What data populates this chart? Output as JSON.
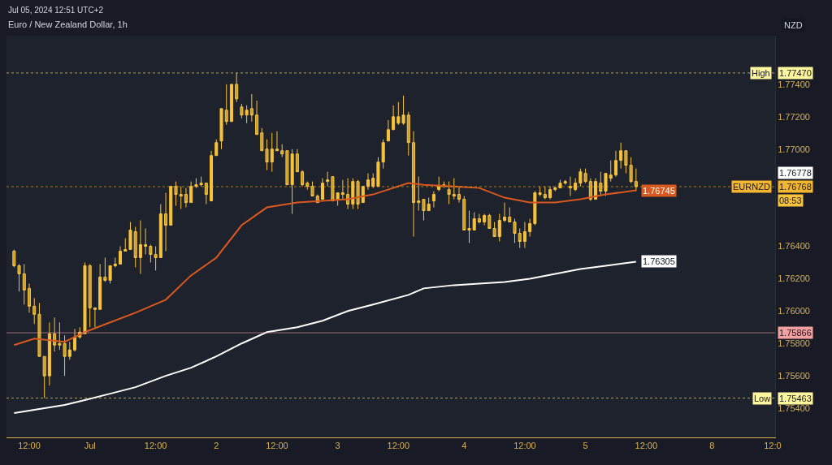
{
  "chart_data": {
    "type": "candlestick",
    "title": "Euro / New Zealand Dollar, 1h",
    "subtitle": "Jul 05, 2024 12:51 UTC+2",
    "color": "#f7c33c",
    "categories": [
      null,
      null,
      null,
      "12:00",
      null,
      null,
      null,
      null,
      null,
      null,
      null,
      null,
      null,
      null,
      null,
      "Jul",
      null,
      null,
      null,
      null,
      null,
      null,
      null,
      null,
      null,
      null,
      null,
      null,
      "12:00",
      null,
      null,
      null,
      null,
      null,
      null,
      null,
      null,
      null,
      null,
      null,
      "2",
      null,
      null,
      null,
      null,
      null,
      null,
      null,
      null,
      null,
      null,
      null,
      "12:00",
      null,
      null,
      null,
      null,
      null,
      null,
      null,
      null,
      null,
      null,
      null,
      "3",
      null,
      null,
      null,
      null,
      null,
      null,
      null,
      null,
      null,
      null,
      null,
      "12:00",
      null,
      null,
      null,
      null,
      null,
      null,
      null,
      null,
      null,
      null,
      null,
      null,
      "4",
      null,
      null,
      null,
      null,
      null,
      null,
      null,
      null,
      null,
      null,
      null,
      "12:00",
      null,
      null,
      null,
      null,
      null,
      null,
      null,
      null,
      null,
      null,
      null,
      "5",
      null,
      null,
      null,
      null,
      null,
      null,
      null,
      null,
      null,
      null,
      null,
      "12:00",
      null,
      null,
      null,
      null,
      null,
      null,
      null,
      null,
      null,
      null,
      null,
      null,
      "8",
      null,
      null,
      null,
      null,
      null,
      null,
      null,
      null,
      null,
      null,
      null,
      "12:0"
    ],
    "ohlc": [
      [
        1.7637,
        1.7638,
        1.7627,
        1.7628
      ],
      [
        1.7628,
        1.7629,
        1.7612,
        1.7623
      ],
      [
        1.7623,
        1.7629,
        1.7604,
        1.7613
      ],
      [
        1.7614,
        1.7617,
        1.7599,
        1.7603
      ],
      [
        1.7603,
        1.7608,
        1.7592,
        1.7598
      ],
      [
        1.7598,
        1.7605,
        1.7572,
        1.7572
      ],
      [
        1.7572,
        1.7572,
        1.75463,
        1.756
      ],
      [
        1.756,
        1.7593,
        1.7554,
        1.7586
      ],
      [
        1.7586,
        1.7596,
        1.7575,
        1.7579
      ],
      [
        1.758,
        1.7593,
        1.7576,
        1.7579
      ],
      [
        1.758,
        1.7585,
        1.756,
        1.7572
      ],
      [
        1.7572,
        1.7581,
        1.757,
        1.7576
      ],
      [
        1.7576,
        1.7589,
        1.7575,
        1.7584
      ],
      [
        1.7584,
        1.759,
        1.7583,
        1.7587
      ],
      [
        1.7586,
        1.763,
        1.7586,
        1.7628
      ],
      [
        1.7628,
        1.7629,
        1.759,
        1.7602
      ],
      [
        1.7602,
        1.7602,
        1.759,
        1.7601
      ],
      [
        1.7601,
        1.7629,
        1.7601,
        1.7621
      ],
      [
        1.7621,
        1.7633,
        1.7618,
        1.7619
      ],
      [
        1.7619,
        1.7628,
        1.7617,
        1.7628
      ],
      [
        1.7628,
        1.7633,
        1.7627,
        1.7629
      ],
      [
        1.7629,
        1.764,
        1.7629,
        1.7637
      ],
      [
        1.7637,
        1.7645,
        1.7637,
        1.7638
      ],
      [
        1.7638,
        1.7655,
        1.7638,
        1.765
      ],
      [
        1.7649,
        1.7652,
        1.7627,
        1.7633
      ],
      [
        1.7633,
        1.7656,
        1.7623,
        1.7641
      ],
      [
        1.7641,
        1.7651,
        1.7635,
        1.764
      ],
      [
        1.764,
        1.7641,
        1.763,
        1.7635
      ],
      [
        1.7635,
        1.764,
        1.7625,
        1.7633
      ],
      [
        1.7633,
        1.7666,
        1.7633,
        1.766
      ],
      [
        1.766,
        1.7673,
        1.7637,
        1.7653
      ],
      [
        1.7653,
        1.7677,
        1.7653,
        1.7677
      ],
      [
        1.7677,
        1.768,
        1.7665,
        1.7672
      ],
      [
        1.7672,
        1.7677,
        1.7663,
        1.7671
      ],
      [
        1.7672,
        1.7676,
        1.7664,
        1.7667
      ],
      [
        1.7667,
        1.768,
        1.7667,
        1.7677
      ],
      [
        1.7677,
        1.7682,
        1.7676,
        1.7678
      ],
      [
        1.7678,
        1.7683,
        1.7677,
        1.7679
      ],
      [
        1.7679,
        1.7679,
        1.7666,
        1.7672
      ],
      [
        1.7668,
        1.7699,
        1.7668,
        1.7696
      ],
      [
        1.7696,
        1.7706,
        1.7696,
        1.7704
      ],
      [
        1.7705,
        1.7725,
        1.77,
        1.7725
      ],
      [
        1.7724,
        1.774,
        1.7715,
        1.7717
      ],
      [
        1.7717,
        1.774,
        1.7717,
        1.774
      ],
      [
        1.774,
        1.7747,
        1.7729,
        1.7731
      ],
      [
        1.7726,
        1.7728,
        1.7719,
        1.7721
      ],
      [
        1.7721,
        1.7727,
        1.7716,
        1.7724
      ],
      [
        1.7725,
        1.7734,
        1.7717,
        1.7721
      ],
      [
        1.7721,
        1.773,
        1.7709,
        1.7709
      ],
      [
        1.771,
        1.7713,
        1.7699,
        1.7699
      ],
      [
        1.77,
        1.7706,
        1.7687,
        1.7692
      ],
      [
        1.7692,
        1.771,
        1.7686,
        1.77
      ],
      [
        1.77,
        1.7711,
        1.7699,
        1.7699
      ],
      [
        1.7699,
        1.7703,
        1.7695,
        1.7697
      ],
      [
        1.7699,
        1.7699,
        1.7678,
        1.7678
      ],
      [
        1.7678,
        1.77,
        1.766,
        1.7697
      ],
      [
        1.7697,
        1.77,
        1.7686,
        1.7686
      ],
      [
        1.7686,
        1.7687,
        1.7677,
        1.7678
      ],
      [
        1.7679,
        1.768,
        1.7675,
        1.7677
      ],
      [
        1.7677,
        1.768,
        1.7671,
        1.7671
      ],
      [
        1.7671,
        1.7672,
        1.7667,
        1.7667
      ],
      [
        1.7669,
        1.7682,
        1.7669,
        1.7679
      ],
      [
        1.768,
        1.7686,
        1.7677,
        1.7681
      ],
      [
        1.7683,
        1.7683,
        1.7668,
        1.7668
      ],
      [
        1.7669,
        1.7673,
        1.7665,
        1.7673
      ],
      [
        1.7672,
        1.7681,
        1.7669,
        1.7673
      ],
      [
        1.7672,
        1.7682,
        1.7663,
        1.7666
      ],
      [
        1.7666,
        1.7682,
        1.7663,
        1.768
      ],
      [
        1.768,
        1.7681,
        1.7663,
        1.7666
      ],
      [
        1.7667,
        1.7677,
        1.7667,
        1.7677
      ],
      [
        1.7677,
        1.7685,
        1.7675,
        1.7681
      ],
      [
        1.7677,
        1.7685,
        1.7676,
        1.7682
      ],
      [
        1.7677,
        1.7695,
        1.7677,
        1.7692
      ],
      [
        1.7692,
        1.7706,
        1.7688,
        1.7704
      ],
      [
        1.7705,
        1.7718,
        1.7705,
        1.7712
      ],
      [
        1.7712,
        1.7727,
        1.7712,
        1.772
      ],
      [
        1.7716,
        1.7729,
        1.7715,
        1.772
      ],
      [
        1.7716,
        1.7733,
        1.7715,
        1.7721
      ],
      [
        1.7721,
        1.7723,
        1.7696,
        1.7704
      ],
      [
        1.7704,
        1.7711,
        1.7646,
        1.7667
      ],
      [
        1.7668,
        1.7683,
        1.7662,
        1.7667
      ],
      [
        1.7669,
        1.7669,
        1.7656,
        1.7662
      ],
      [
        1.7662,
        1.767,
        1.7662,
        1.7666
      ],
      [
        1.7668,
        1.7674,
        1.7664,
        1.7672
      ],
      [
        1.7675,
        1.7683,
        1.7674,
        1.7677
      ],
      [
        1.7677,
        1.768,
        1.7676,
        1.7678
      ],
      [
        1.7675,
        1.768,
        1.7666,
        1.7672
      ],
      [
        1.7672,
        1.7682,
        1.7669,
        1.7671
      ],
      [
        1.7672,
        1.7677,
        1.7667,
        1.7669
      ],
      [
        1.7669,
        1.7671,
        1.765,
        1.765
      ],
      [
        1.7651,
        1.7662,
        1.7642,
        1.765
      ],
      [
        1.765,
        1.7661,
        1.765,
        1.7657
      ],
      [
        1.7657,
        1.766,
        1.7654,
        1.7655
      ],
      [
        1.7655,
        1.766,
        1.7653,
        1.7659
      ],
      [
        1.7659,
        1.766,
        1.7651,
        1.7651
      ],
      [
        1.7651,
        1.7655,
        1.7646,
        1.7646
      ],
      [
        1.7646,
        1.766,
        1.7643,
        1.7656
      ],
      [
        1.7656,
        1.7667,
        1.7655,
        1.7658
      ],
      [
        1.7658,
        1.7664,
        1.7655,
        1.7655
      ],
      [
        1.7655,
        1.7657,
        1.7642,
        1.7648
      ],
      [
        1.7648,
        1.7651,
        1.7639,
        1.7643
      ],
      [
        1.7643,
        1.7655,
        1.7639,
        1.7649
      ],
      [
        1.7649,
        1.7657,
        1.7646,
        1.7654
      ],
      [
        1.7654,
        1.7674,
        1.7653,
        1.7673
      ],
      [
        1.7673,
        1.7677,
        1.7671,
        1.7672
      ],
      [
        1.7672,
        1.7677,
        1.7669,
        1.767
      ],
      [
        1.767,
        1.7677,
        1.7669,
        1.7675
      ],
      [
        1.7675,
        1.7677,
        1.7674,
        1.7676
      ],
      [
        1.7676,
        1.7681,
        1.7676,
        1.7679
      ],
      [
        1.7679,
        1.7681,
        1.7678,
        1.768
      ],
      [
        1.7677,
        1.7683,
        1.7671,
        1.7676
      ],
      [
        1.7675,
        1.7682,
        1.7674,
        1.7679
      ],
      [
        1.7679,
        1.7688,
        1.7677,
        1.7686
      ],
      [
        1.7685,
        1.7688,
        1.7679,
        1.768
      ],
      [
        1.768,
        1.7682,
        1.7668,
        1.7669
      ],
      [
        1.7669,
        1.7682,
        1.7669,
        1.768
      ],
      [
        1.7679,
        1.7686,
        1.7671,
        1.7674
      ],
      [
        1.7674,
        1.7685,
        1.7671,
        1.7685
      ],
      [
        1.7682,
        1.7693,
        1.768,
        1.7684
      ],
      [
        1.7684,
        1.7699,
        1.7683,
        1.7693
      ],
      [
        1.7693,
        1.7704,
        1.7688,
        1.7699
      ],
      [
        1.7699,
        1.7699,
        1.7685,
        1.769
      ],
      [
        1.769,
        1.7695,
        1.7679,
        1.768
      ],
      [
        1.768,
        1.7688,
        1.7674,
        1.76768
      ],
      null,
      null,
      null,
      null,
      null,
      null,
      null,
      null,
      null,
      null,
      null,
      null,
      null,
      null,
      null,
      null,
      null,
      null,
      null,
      null,
      null,
      null,
      null,
      null,
      null,
      null,
      null
    ],
    "series": [
      {
        "type": "line",
        "color": "#d9581f",
        "values": [
          1.7579,
          null,
          null,
          null,
          1.7583,
          null,
          null,
          null,
          null,
          null,
          1.7581,
          null,
          null,
          null,
          1.7587,
          null,
          null,
          null,
          null,
          1.7593,
          null,
          null,
          null,
          null,
          1.7599,
          null,
          null,
          null,
          null,
          null,
          1.7607,
          null,
          null,
          null,
          null,
          1.7622,
          null,
          null,
          null,
          null,
          1.7633,
          null,
          null,
          null,
          null,
          1.7653,
          null,
          null,
          null,
          null,
          1.7664,
          null,
          null,
          null,
          null,
          null,
          1.7667,
          null,
          null,
          null,
          null,
          1.7668,
          null,
          null,
          null,
          null,
          1.7669,
          null,
          null,
          null,
          null,
          1.7672,
          null,
          null,
          null,
          null,
          null,
          null,
          1.7679,
          null,
          null,
          1.7678,
          null,
          null,
          null,
          null,
          null,
          1.7677,
          null,
          null,
          null,
          null,
          1.7676,
          null,
          null,
          null,
          null,
          1.767,
          null,
          null,
          null,
          null,
          1.7667,
          null,
          null,
          null,
          null,
          1.7667,
          null,
          null,
          null,
          null,
          1.7669,
          null,
          null,
          null,
          null,
          1.7672,
          null,
          null,
          null,
          null,
          null,
          1.76745,
          null,
          null,
          null,
          null,
          null,
          null,
          null,
          null,
          null,
          null,
          null,
          null,
          null,
          null,
          null,
          null,
          null,
          null,
          null,
          null,
          null,
          null,
          null,
          null,
          null,
          null,
          null
        ],
        "value_labels": [
          null,
          null,
          null,
          null,
          null,
          null,
          null,
          null,
          null,
          null,
          null,
          null,
          null,
          null,
          null,
          null,
          null,
          null,
          null,
          null,
          null,
          null,
          null,
          null,
          null,
          null,
          null,
          null,
          null,
          null,
          null,
          null,
          null,
          null,
          null,
          null,
          null,
          null,
          null,
          null,
          null,
          null,
          null,
          null,
          null,
          null,
          null,
          null,
          null,
          null,
          null,
          null,
          null,
          null,
          null,
          null,
          null,
          null,
          null,
          null,
          null,
          null,
          null,
          null,
          null,
          null,
          null,
          null,
          null,
          null,
          null,
          null,
          null,
          null,
          null,
          null,
          null,
          null,
          null,
          null,
          null,
          null,
          null,
          null,
          null,
          null,
          null,
          null,
          null,
          null,
          null,
          null,
          null,
          null,
          null,
          null,
          null,
          null,
          null,
          null,
          null,
          null,
          null,
          null,
          null,
          null,
          null,
          null,
          null,
          null,
          null,
          null,
          null,
          null,
          null,
          null,
          null,
          null,
          null,
          null,
          null,
          null,
          null,
          "1.76745",
          null,
          null,
          null,
          null,
          null,
          null,
          null,
          null,
          null,
          null,
          null,
          null,
          null,
          null,
          null,
          null,
          null,
          null,
          null,
          null,
          null,
          null,
          null,
          null,
          null,
          null,
          null
        ]
      },
      {
        "type": "line",
        "color": "#ffffff",
        "values": [
          1.7537,
          null,
          null,
          null,
          1.7539,
          null,
          null,
          null,
          null,
          null,
          1.7542,
          null,
          null,
          null,
          1.7545,
          null,
          null,
          null,
          null,
          1.7549,
          null,
          null,
          null,
          null,
          1.7553,
          null,
          null,
          null,
          null,
          null,
          1.756,
          null,
          null,
          null,
          null,
          1.7565,
          null,
          null,
          null,
          null,
          1.7572,
          null,
          null,
          null,
          null,
          1.758,
          null,
          null,
          null,
          null,
          1.7587,
          null,
          null,
          null,
          null,
          null,
          1.759,
          null,
          null,
          null,
          null,
          1.7594,
          null,
          null,
          null,
          null,
          1.76,
          null,
          null,
          null,
          null,
          1.7604,
          null,
          null,
          null,
          null,
          null,
          null,
          1.761,
          null,
          null,
          1.7614,
          null,
          null,
          null,
          null,
          null,
          1.7616,
          null,
          null,
          null,
          null,
          1.7617,
          null,
          null,
          null,
          null,
          1.7618,
          null,
          null,
          null,
          null,
          1.762,
          null,
          null,
          null,
          null,
          1.7623,
          null,
          null,
          null,
          null,
          1.7626,
          null,
          null,
          null,
          null,
          1.7628,
          null,
          null,
          null,
          null,
          null,
          1.76305,
          null,
          null,
          null,
          null,
          null,
          null,
          null,
          null,
          null,
          null,
          null,
          null,
          null,
          null,
          null,
          null,
          null,
          null,
          null,
          null,
          null,
          null,
          null,
          null,
          null,
          null,
          null
        ],
        "value_labels": [
          null,
          null,
          null,
          null,
          null,
          null,
          null,
          null,
          null,
          null,
          null,
          null,
          null,
          null,
          null,
          null,
          null,
          null,
          null,
          null,
          null,
          null,
          null,
          null,
          null,
          null,
          null,
          null,
          null,
          null,
          null,
          null,
          null,
          null,
          null,
          null,
          null,
          null,
          null,
          null,
          null,
          null,
          null,
          null,
          null,
          null,
          null,
          null,
          null,
          null,
          null,
          null,
          null,
          null,
          null,
          null,
          null,
          null,
          null,
          null,
          null,
          null,
          null,
          null,
          null,
          null,
          null,
          null,
          null,
          null,
          null,
          null,
          null,
          null,
          null,
          null,
          null,
          null,
          null,
          null,
          null,
          null,
          null,
          null,
          null,
          null,
          null,
          null,
          null,
          null,
          null,
          null,
          null,
          null,
          null,
          null,
          null,
          null,
          null,
          null,
          null,
          null,
          null,
          null,
          null,
          null,
          null,
          null,
          null,
          null,
          null,
          null,
          null,
          null,
          null,
          null,
          null,
          null,
          null,
          null,
          null,
          null,
          null,
          "1.76305",
          null,
          null,
          null,
          null,
          null,
          null,
          null,
          null,
          null,
          null,
          null,
          null,
          null,
          null,
          null,
          null,
          null,
          null,
          null,
          null,
          null,
          null,
          null,
          null,
          null,
          null,
          null
        ]
      }
    ],
    "ylim": [
      1.7522,
      1.777
    ],
    "yticks": [
      {
        "value": 1.754,
        "label": "1.75400"
      },
      {
        "value": 1.756,
        "label": "1.75600"
      },
      {
        "value": 1.758,
        "label": "1.75800"
      },
      {
        "value": 1.76,
        "label": "1.76000"
      },
      {
        "value": 1.762,
        "label": "1.76200"
      },
      {
        "value": 1.764,
        "label": "1.76400"
      },
      {
        "value": 1.77,
        "label": "1.77000"
      },
      {
        "value": 1.772,
        "label": "1.77200"
      },
      {
        "value": 1.774,
        "label": "1.77400"
      }
    ],
    "ref_lines": [
      {
        "axis": "y",
        "value": 1.7747,
        "label": "1.77470",
        "color": "#fff59d",
        "line_style": "dotted"
      },
      {
        "axis": "y",
        "value": 1.75463,
        "label": "1.75463",
        "color": "#fff59d",
        "line_style": "dotted"
      },
      {
        "axis": "y",
        "value": 1.76768,
        "label": "1.76768",
        "color": "#f5b62f",
        "line_style": "dotted"
      },
      {
        "axis": "y",
        "value": 1.75866,
        "label": "1.75866",
        "color": "#f4a0a0",
        "line_style": "solid"
      }
    ],
    "annotations": [
      "NZD",
      "1.76778",
      "08:53",
      "High",
      "Low",
      "EURNZD"
    ]
  }
}
